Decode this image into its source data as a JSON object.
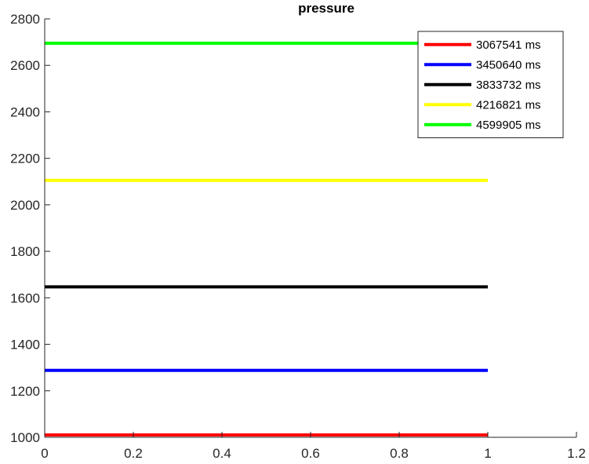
{
  "chart_data": {
    "type": "line",
    "title": "pressure",
    "xlabel": "",
    "ylabel": "",
    "xlim": [
      0,
      1.2
    ],
    "ylim": [
      1000,
      2800
    ],
    "xticks": [
      "0",
      "0.2",
      "0.4",
      "0.6",
      "0.8",
      "1",
      "1.2"
    ],
    "yticks": [
      "1000",
      "1200",
      "1400",
      "1600",
      "1800",
      "2000",
      "2200",
      "2400",
      "2600",
      "2800"
    ],
    "grid": false,
    "legend_position": "top-right",
    "series": [
      {
        "name": "3067541 ms",
        "color": "#ff0000",
        "x": [
          0,
          1
        ],
        "y": [
          1010,
          1010
        ]
      },
      {
        "name": "3450640 ms",
        "color": "#0000ff",
        "x": [
          0,
          1
        ],
        "y": [
          1288,
          1288
        ]
      },
      {
        "name": "3833732 ms",
        "color": "#000000",
        "x": [
          0,
          1
        ],
        "y": [
          1647,
          1647
        ]
      },
      {
        "name": "4216821 ms",
        "color": "#ffff00",
        "x": [
          0,
          1
        ],
        "y": [
          2105,
          2105
        ]
      },
      {
        "name": "4599905 ms",
        "color": "#00ff00",
        "x": [
          0,
          1
        ],
        "y": [
          2695,
          2695
        ]
      }
    ]
  }
}
